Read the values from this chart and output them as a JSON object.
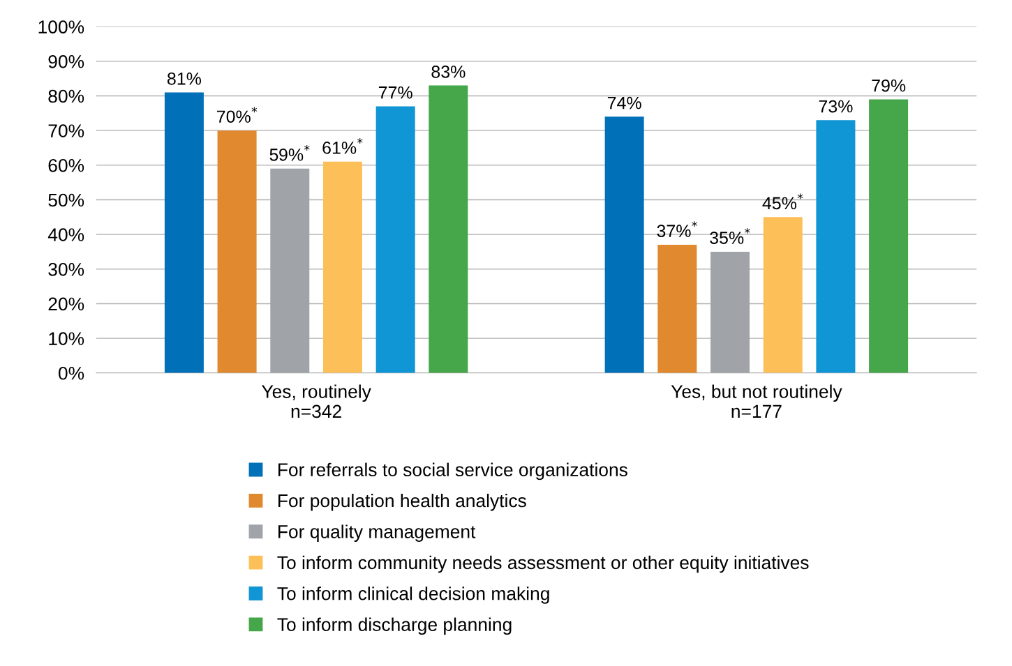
{
  "chart_data": {
    "type": "bar",
    "categories": [
      "Yes, routinely\nn=342",
      "Yes, but not routinely\nn=177"
    ],
    "series": [
      {
        "name": "For referrals to social service organizations",
        "color": "#0070b8",
        "values": [
          81,
          74
        ],
        "value_labels": [
          "81%",
          "74%"
        ]
      },
      {
        "name": "For population health analytics",
        "color": "#e0892e",
        "values": [
          70,
          37
        ],
        "value_labels": [
          "70%$^{*}$",
          "37%$^{*}$"
        ]
      },
      {
        "name": "For quality management",
        "color": "#a0a4a8",
        "values": [
          59,
          35
        ],
        "value_labels": [
          "59%$^{*}$",
          "35%$^{*}$"
        ]
      },
      {
        "name": "To inform community needs assessment or other equity initiatives",
        "color": "#fdc058",
        "values": [
          61,
          45
        ],
        "value_labels": [
          "61%$^{*}$",
          "45%$^{*}$"
        ]
      },
      {
        "name": "To inform clinical decision making",
        "color": "#1096d4",
        "values": [
          77,
          73
        ],
        "value_labels": [
          "77%",
          "73%"
        ]
      },
      {
        "name": "To inform discharge planning",
        "color": "#45a64a",
        "values": [
          83,
          79
        ],
        "value_labels": [
          "83%",
          "79%"
        ]
      }
    ],
    "ylim": [
      0,
      100
    ],
    "yticks": [
      {
        "value": 0,
        "label": "0%"
      },
      {
        "value": 10,
        "label": "10%"
      },
      {
        "value": 20,
        "label": "20%"
      },
      {
        "value": 30,
        "label": "30%"
      },
      {
        "value": 40,
        "label": "40%"
      },
      {
        "value": 50,
        "label": "50%"
      },
      {
        "value": 60,
        "label": "60%"
      },
      {
        "value": 70,
        "label": "70%"
      },
      {
        "value": 80,
        "label": "80%"
      },
      {
        "value": 90,
        "label": "90%"
      },
      {
        "value": 100,
        "label": "100%"
      }
    ],
    "grid": "y",
    "legend": "bottom"
  }
}
